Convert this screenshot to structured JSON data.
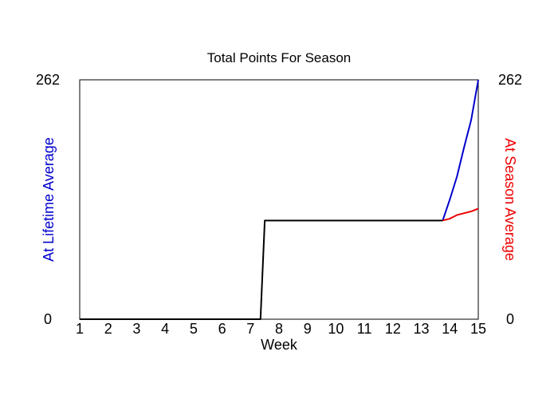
{
  "chart_data": {
    "type": "line",
    "title": "Total Points For Season",
    "xlabel": "Week",
    "ylabel_left": "At Lifetime Average",
    "ylabel_right": "At Season Average",
    "xlim": [
      1,
      15
    ],
    "ylim": [
      0,
      262
    ],
    "x_ticks": [
      "1",
      "2",
      "3",
      "4",
      "5",
      "6",
      "7",
      "8",
      "9",
      "10",
      "11",
      "12",
      "13",
      "14",
      "15"
    ],
    "y_ticks_left": [
      "0",
      "262"
    ],
    "y_ticks_right": [
      "0",
      "262"
    ],
    "grid": false,
    "series": [
      {
        "color": "#0000cc",
        "x": [
          13.75,
          14.0,
          14.25,
          14.5,
          14.75,
          15.0
        ],
        "y": [
          108,
          131,
          156,
          188,
          218,
          262
        ]
      },
      {
        "color": "#ee0000",
        "x": [
          13.75,
          14.0,
          14.25,
          14.5,
          14.75,
          15.0
        ],
        "y": [
          108,
          110,
          114,
          116,
          118,
          121
        ]
      },
      {
        "color": "#000000",
        "x": [
          1,
          2,
          3,
          4,
          5,
          6,
          7,
          7.35,
          7.5,
          8,
          9,
          10,
          11,
          12,
          13,
          13.75
        ],
        "y": [
          0,
          0,
          0,
          0,
          0,
          0,
          0,
          0,
          108,
          108,
          108,
          108,
          108,
          108,
          108,
          108
        ]
      }
    ]
  }
}
